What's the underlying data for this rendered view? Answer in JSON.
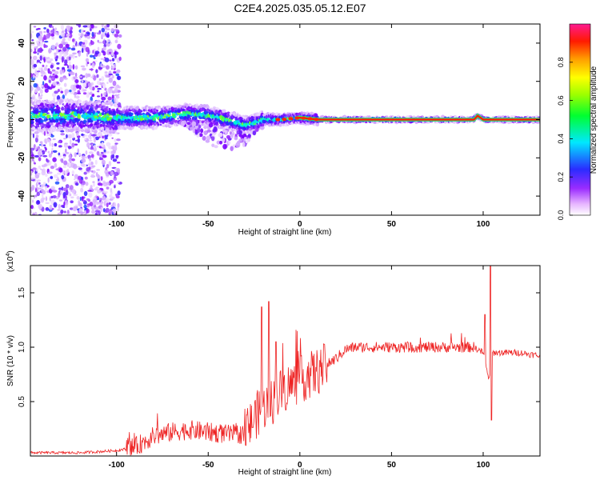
{
  "title": "C2E4.2025.035.05.12.E07",
  "chart_data": [
    {
      "type": "heatmap",
      "xlabel": "Height of straight line (km)",
      "ylabel": "Frequency (Hz)",
      "xlim": [
        -147,
        131
      ],
      "ylim": [
        -50,
        50
      ],
      "xticks": [
        -100,
        -50,
        0,
        50,
        100
      ],
      "yticks": [
        -40,
        -20,
        0,
        20,
        40
      ],
      "colorbar": {
        "label": "Normalized spectral amplitude",
        "range": [
          0,
          1
        ],
        "ticks": [
          "0.0",
          "0.2",
          "0.4",
          "0.6",
          "0.8"
        ],
        "colormap": "rainbow (white-violet-blue-cyan-green-yellow-red-magenta)"
      },
      "ridge": {
        "x": [
          -120,
          -100,
          -80,
          -60,
          -50,
          -40,
          -30,
          -25,
          -20,
          -10,
          0,
          10,
          20,
          50,
          80,
          95,
          97,
          100,
          105,
          131
        ],
        "y": [
          2,
          1,
          1,
          3,
          2,
          0,
          -3,
          -2,
          0,
          0,
          1,
          0,
          0,
          0,
          0,
          0,
          2,
          0,
          0,
          0
        ]
      }
    },
    {
      "type": "line",
      "xlabel": "Height of straight line (km)",
      "ylabel": "SNR (10 * v/v)",
      "yscale_label": "(x10",
      "yscale_exp": "4",
      "xlim": [
        -147,
        131
      ],
      "ylim": [
        0,
        1.75
      ],
      "xticks": [
        -100,
        -50,
        0,
        50,
        100
      ],
      "yticks": [
        "0.5",
        "1.0",
        "1.5"
      ],
      "series_color": "#ee2222",
      "envelope": {
        "x": [
          -147,
          -120,
          -100,
          -90,
          -80,
          -70,
          -60,
          -50,
          -40,
          -35,
          -30,
          -25,
          -20,
          -15,
          -10,
          -5,
          0,
          10,
          20,
          25,
          30,
          40,
          60,
          80,
          95,
          100,
          103,
          105,
          110,
          120,
          131
        ],
        "mean": [
          0.03,
          0.03,
          0.05,
          0.08,
          0.18,
          0.22,
          0.24,
          0.22,
          0.2,
          0.2,
          0.2,
          0.35,
          0.45,
          0.5,
          0.6,
          0.65,
          0.7,
          0.78,
          0.9,
          0.98,
          1.0,
          1.0,
          1.0,
          1.0,
          1.0,
          0.95,
          0.7,
          0.95,
          0.95,
          0.95,
          0.92
        ]
      },
      "spikes": [
        {
          "x": -21,
          "y": 1.37
        },
        {
          "x": -17,
          "y": 1.42
        },
        {
          "x": -13,
          "y": 1.05
        },
        {
          "x": 101,
          "y": 1.3
        },
        {
          "x": 104,
          "y": 1.75
        },
        {
          "x": 104.5,
          "y": 0.33
        }
      ]
    }
  ]
}
